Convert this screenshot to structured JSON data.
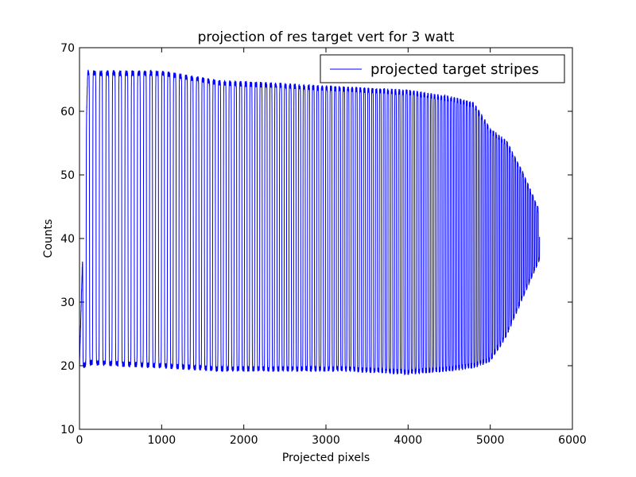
{
  "chart_data": {
    "type": "line",
    "title": "projection of res target vert for 3 watt",
    "xlabel": "Projected pixels",
    "ylabel": "Counts",
    "xlim": [
      0,
      6000
    ],
    "ylim": [
      10,
      70
    ],
    "x_ticks": [
      0,
      1000,
      2000,
      3000,
      4000,
      5000,
      6000
    ],
    "y_ticks": [
      10,
      20,
      30,
      40,
      50,
      60,
      70
    ],
    "grid": false,
    "legend_position": "top-right",
    "series": [
      {
        "name": "projected target stripes",
        "color": "#0000ff",
        "x_start": 0,
        "x_end": 5600,
        "n_cycles": 110,
        "start_period_px": 70,
        "end_period_px": 25,
        "envelope_x": [
          0,
          100,
          1000,
          1700,
          2500,
          3200,
          4000,
          4500,
          4800,
          5000,
          5200,
          5400,
          5600
        ],
        "upper_envelope": [
          20,
          66,
          66,
          64.5,
          64,
          63.5,
          63,
          62,
          61,
          57,
          55,
          50,
          44
        ],
        "lower_envelope": [
          19.5,
          20.5,
          20,
          19.5,
          19.5,
          19.5,
          19,
          19.5,
          20,
          21,
          25,
          31,
          37
        ]
      }
    ]
  }
}
